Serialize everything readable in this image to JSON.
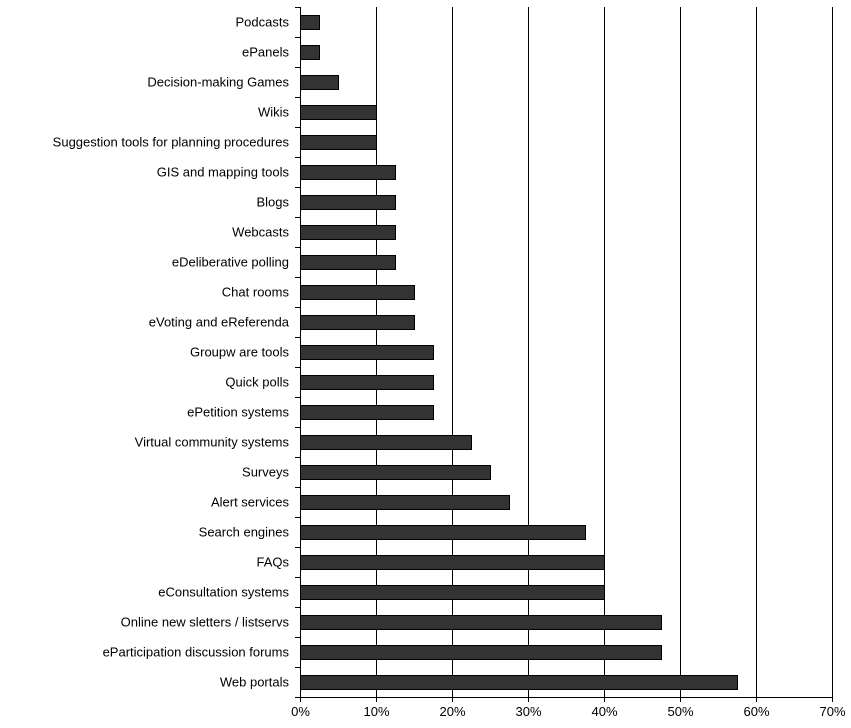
{
  "chart_data": {
    "type": "bar",
    "orientation": "horizontal",
    "categories": [
      "Podcasts",
      "ePanels",
      "Decision-making Games",
      "Wikis",
      "Suggestion tools for planning procedures",
      "GIS and mapping tools",
      "Blogs",
      "Webcasts",
      "eDeliberative polling",
      "Chat rooms",
      "eVoting and eReferenda",
      "Groupw are tools",
      "Quick polls",
      "ePetition systems",
      "Virtual community systems",
      "Surveys",
      "Alert services",
      "Search engines",
      "FAQs",
      "eConsultation systems",
      "Online new sletters / listservs",
      "eParticipation discussion forums",
      "Web portals"
    ],
    "values": [
      2.5,
      2.5,
      5,
      10,
      10,
      12.5,
      12.5,
      12.5,
      12.5,
      15,
      15,
      17.5,
      17.5,
      17.5,
      22.5,
      25,
      27.5,
      37.5,
      40,
      40,
      47.5,
      47.5,
      57.5
    ],
    "xlim": [
      0,
      70
    ],
    "xticks": [
      "0%",
      "10%",
      "20%",
      "30%",
      "40%",
      "50%",
      "60%",
      "70%"
    ],
    "grid": true,
    "colors": {
      "bar": "#333333",
      "bar_edge": "#000000",
      "grid": "#000000"
    }
  }
}
